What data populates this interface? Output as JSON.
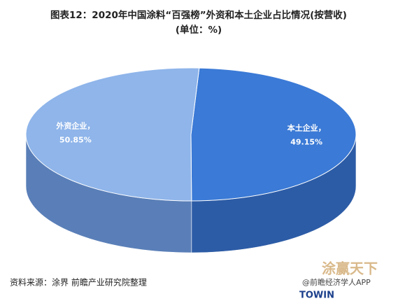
{
  "chart_data": {
    "type": "pie3d",
    "title": "图表12：2020年中国涂料“百强榜”外资和本土企业占比情况(按营收)",
    "subtitle": "(单位：%)",
    "categories": [
      "本土企业，",
      "外资企业，"
    ],
    "values": [
      49.15,
      50.85
    ],
    "value_labels": [
      "49.15%",
      "50.85%"
    ],
    "colors": [
      "#3b7ad6",
      "#8fb5ea"
    ],
    "side_colors": [
      "#2d5ca6",
      "#5a7fb8"
    ]
  },
  "source": "资料来源：涂界 前瞻产业研究院整理",
  "watermarks": {
    "logo": "涂赢天下",
    "brand": "TOWIN",
    "account": "@前瞻经济学人APP"
  }
}
